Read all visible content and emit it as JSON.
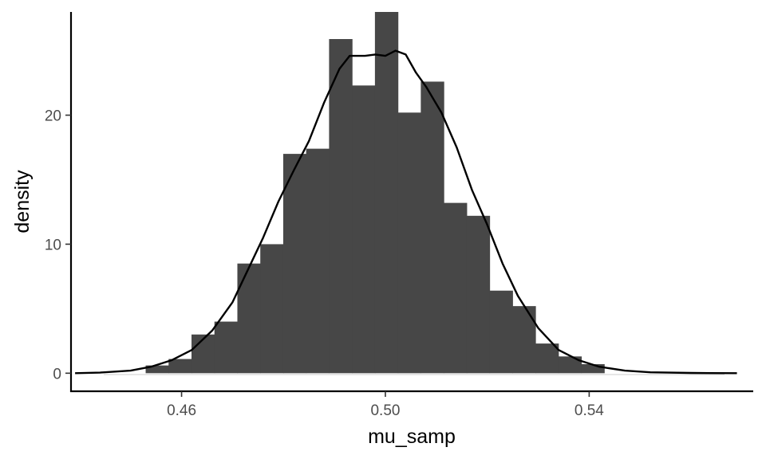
{
  "chart_data": {
    "type": "bar",
    "title": "",
    "xlabel": "mu_samp",
    "ylabel": "density",
    "xlim": [
      0.4383,
      0.5722
    ],
    "ylim": [
      -1.4,
      28.0
    ],
    "grid": false,
    "legend": "none",
    "x_ticks": [
      {
        "value": 0.46,
        "label": "0.46"
      },
      {
        "value": 0.5,
        "label": "0.50"
      },
      {
        "value": 0.54,
        "label": "0.54"
      }
    ],
    "y_ticks": [
      {
        "value": 0,
        "label": "0"
      },
      {
        "value": 10,
        "label": "10"
      },
      {
        "value": 20,
        "label": "20"
      }
    ],
    "histogram": {
      "bin_width": 0.0045,
      "fill": "#474747",
      "bins": [
        {
          "x": 0.4417,
          "density": 0.0
        },
        {
          "x": 0.4462,
          "density": 0.0
        },
        {
          "x": 0.4507,
          "density": 0.0
        },
        {
          "x": 0.4552,
          "density": 0.6
        },
        {
          "x": 0.4597,
          "density": 1.1
        },
        {
          "x": 0.4642,
          "density": 3.0
        },
        {
          "x": 0.4687,
          "density": 4.0
        },
        {
          "x": 0.4732,
          "density": 8.5
        },
        {
          "x": 0.4777,
          "density": 10.0
        },
        {
          "x": 0.4822,
          "density": 17.0
        },
        {
          "x": 0.4867,
          "density": 17.4
        },
        {
          "x": 0.4912,
          "density": 25.9
        },
        {
          "x": 0.4957,
          "density": 22.3
        },
        {
          "x": 0.5002,
          "density": 28.0
        },
        {
          "x": 0.5047,
          "density": 20.2
        },
        {
          "x": 0.5092,
          "density": 22.6
        },
        {
          "x": 0.5137,
          "density": 13.2
        },
        {
          "x": 0.5182,
          "density": 12.2
        },
        {
          "x": 0.5227,
          "density": 6.4
        },
        {
          "x": 0.5272,
          "density": 5.2
        },
        {
          "x": 0.5317,
          "density": 2.3
        },
        {
          "x": 0.5362,
          "density": 1.3
        },
        {
          "x": 0.5407,
          "density": 0.7
        },
        {
          "x": 0.5452,
          "density": 0.0
        },
        {
          "x": 0.5497,
          "density": 0.0
        },
        {
          "x": 0.5542,
          "density": 0.0
        },
        {
          "x": 0.5587,
          "density": 0.0
        },
        {
          "x": 0.5632,
          "density": 0.0
        },
        {
          "x": 0.5677,
          "density": 0.0
        }
      ]
    },
    "density_curve": {
      "color": "#000000",
      "points": [
        [
          0.4391,
          0.0
        ],
        [
          0.444,
          0.05
        ],
        [
          0.45,
          0.2
        ],
        [
          0.454,
          0.5
        ],
        [
          0.458,
          1.0
        ],
        [
          0.462,
          1.8
        ],
        [
          0.466,
          3.3
        ],
        [
          0.47,
          5.5
        ],
        [
          0.473,
          8.0
        ],
        [
          0.476,
          10.5
        ],
        [
          0.479,
          13.3
        ],
        [
          0.482,
          15.7
        ],
        [
          0.485,
          18.0
        ],
        [
          0.488,
          21.0
        ],
        [
          0.491,
          23.6
        ],
        [
          0.493,
          24.6
        ],
        [
          0.496,
          24.6
        ],
        [
          0.498,
          24.7
        ],
        [
          0.5,
          24.6
        ],
        [
          0.502,
          25.0
        ],
        [
          0.504,
          24.7
        ],
        [
          0.506,
          23.3
        ],
        [
          0.508,
          22.2
        ],
        [
          0.511,
          20.2
        ],
        [
          0.514,
          17.5
        ],
        [
          0.517,
          14.2
        ],
        [
          0.52,
          11.5
        ],
        [
          0.523,
          8.5
        ],
        [
          0.526,
          6.0
        ],
        [
          0.53,
          3.5
        ],
        [
          0.534,
          1.8
        ],
        [
          0.538,
          1.0
        ],
        [
          0.542,
          0.5
        ],
        [
          0.547,
          0.2
        ],
        [
          0.552,
          0.07
        ],
        [
          0.56,
          0.02
        ],
        [
          0.569,
          0.0
        ]
      ]
    }
  }
}
